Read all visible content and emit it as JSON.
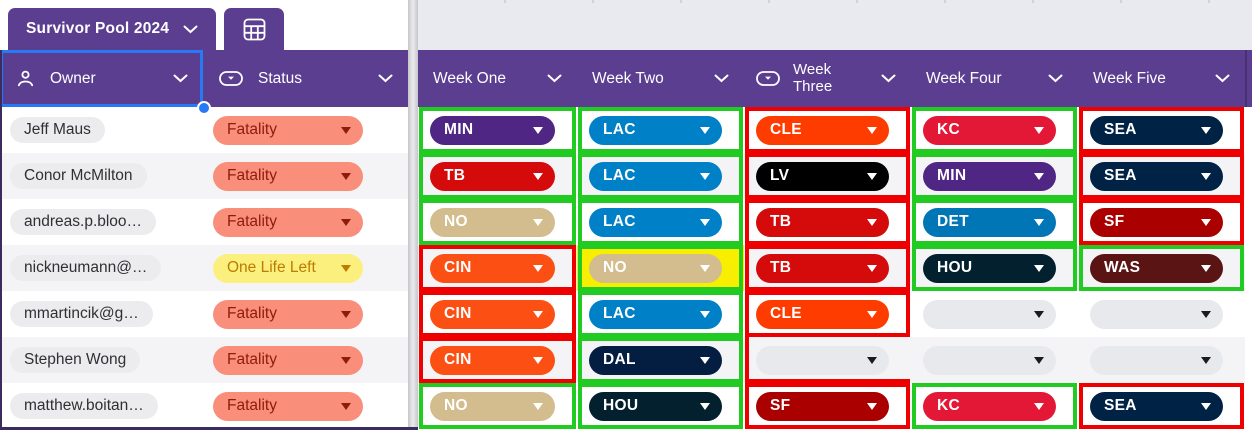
{
  "tabs": {
    "main_label": "Survivor Pool 2024"
  },
  "columns": [
    {
      "id": "owner",
      "label": "Owner",
      "icon": "person-icon"
    },
    {
      "id": "status",
      "label": "Status",
      "icon": "single-select-icon"
    },
    {
      "id": "week1",
      "label": "Week One"
    },
    {
      "id": "week2",
      "label": "Week Two"
    },
    {
      "id": "week3",
      "label": "Week Three",
      "icon": "single-select-icon"
    },
    {
      "id": "week4",
      "label": "Week Four"
    },
    {
      "id": "week5",
      "label": "Week Five"
    }
  ],
  "colors": {
    "header_purple": "#5B3E8F",
    "edge_purple": "#3B2B5E",
    "topbar_gray": "#E9EAEF",
    "row_alt": "#F4F4F6",
    "annotation_green": "#22CB22",
    "annotation_red": "#EE0000",
    "highlight_yellow": "#F7EE00",
    "selection_blue": "#2779F6",
    "name_pill_bg": "#ECECEE",
    "empty_pill_bg": "#E8E9ED"
  },
  "statuses": {
    "Fatality": {
      "bg": "#F98E7B",
      "fg": "#8E1B0E"
    },
    "One Life Left": {
      "bg": "#FBEF7E",
      "fg": "#BD7B00"
    }
  },
  "teams": {
    "MIN": "#4F2683",
    "LAC": "#0080C6",
    "CLE": "#FF3C00",
    "KC": "#E31837",
    "SEA": "#002244",
    "TB": "#D50A0A",
    "LV": "#000000",
    "NO": "#D3BC8D",
    "CIN": "#FB4F14",
    "DET": "#0076B6",
    "SF": "#AA0000",
    "HOU": "#03202F",
    "WAS": "#5A1414",
    "DAL": "#041E42"
  },
  "rows": [
    {
      "owner": "Jeff Maus",
      "status": "Fatality",
      "picks": [
        {
          "team": "MIN",
          "mark": "green"
        },
        {
          "team": "LAC",
          "mark": "green"
        },
        {
          "team": "CLE",
          "mark": "red"
        },
        {
          "team": "KC",
          "mark": "green"
        },
        {
          "team": "SEA",
          "mark": "red"
        }
      ]
    },
    {
      "owner": "Conor McMilton",
      "status": "Fatality",
      "picks": [
        {
          "team": "TB",
          "mark": "green"
        },
        {
          "team": "LAC",
          "mark": "green"
        },
        {
          "team": "LV",
          "mark": "red"
        },
        {
          "team": "MIN",
          "mark": "green"
        },
        {
          "team": "SEA",
          "mark": "red"
        }
      ]
    },
    {
      "owner": "andreas.p.bloo…",
      "status": "Fatality",
      "picks": [
        {
          "team": "NO",
          "mark": "green"
        },
        {
          "team": "LAC",
          "mark": "green"
        },
        {
          "team": "TB",
          "mark": "red"
        },
        {
          "team": "DET",
          "mark": "green"
        },
        {
          "team": "SF",
          "mark": "red"
        }
      ]
    },
    {
      "owner": "nickneumann@…",
      "status": "One Life Left",
      "picks": [
        {
          "team": "CIN",
          "mark": "red"
        },
        {
          "team": "NO",
          "mark": "green",
          "highlight": true
        },
        {
          "team": "TB",
          "mark": "red"
        },
        {
          "team": "HOU",
          "mark": "green"
        },
        {
          "team": "WAS",
          "mark": "green"
        }
      ]
    },
    {
      "owner": "mmartincik@g…",
      "status": "Fatality",
      "picks": [
        {
          "team": "CIN",
          "mark": "red"
        },
        {
          "team": "LAC",
          "mark": "green"
        },
        {
          "team": "CLE",
          "mark": "red"
        },
        {
          "team": null,
          "mark": "none"
        },
        {
          "team": null,
          "mark": "none"
        }
      ]
    },
    {
      "owner": "Stephen Wong",
      "status": "Fatality",
      "picks": [
        {
          "team": "CIN",
          "mark": "red"
        },
        {
          "team": "DAL",
          "mark": "green"
        },
        {
          "team": null,
          "mark": "red-partial"
        },
        {
          "team": null,
          "mark": "none"
        },
        {
          "team": null,
          "mark": "none"
        }
      ]
    },
    {
      "owner": "matthew.boitan…",
      "status": "Fatality",
      "picks": [
        {
          "team": "NO",
          "mark": "green"
        },
        {
          "team": "HOU",
          "mark": "green"
        },
        {
          "team": "SF",
          "mark": "red"
        },
        {
          "team": "KC",
          "mark": "green"
        },
        {
          "team": "SEA",
          "mark": "red"
        }
      ]
    }
  ]
}
